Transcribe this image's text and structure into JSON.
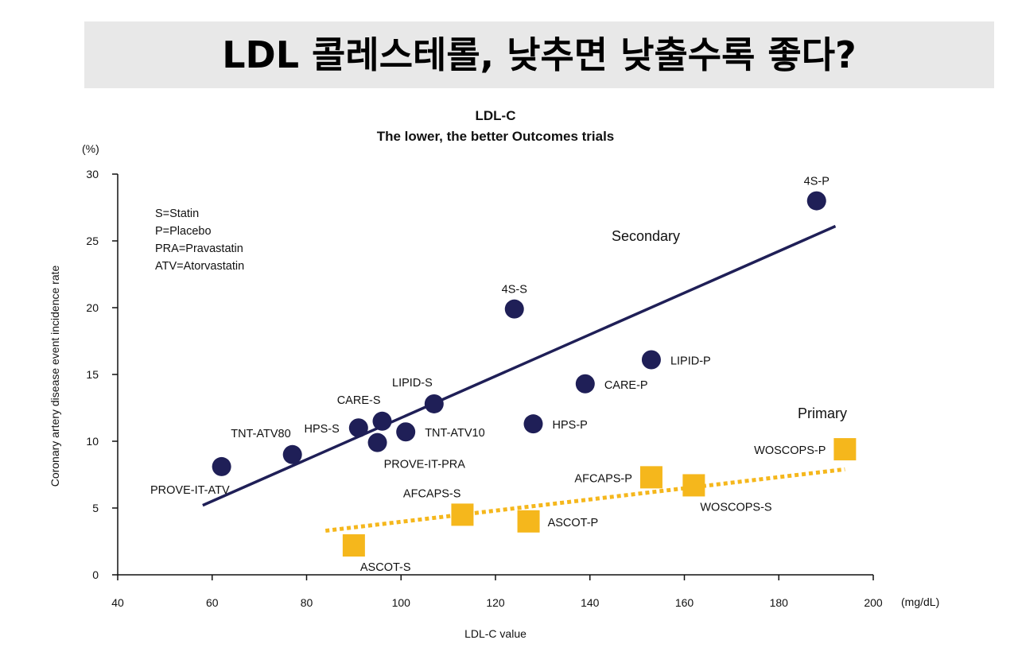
{
  "header": {
    "title": "LDL 콜레스테롤, 낮추면 낮출수록 좋다?"
  },
  "chart_data": {
    "type": "scatter",
    "title": "LDL-C",
    "subtitle": "The lower, the better Outcomes trials",
    "xlabel": "LDL-C value",
    "xunit": "(mg/dL)",
    "ylabel": "Coronary artery disease event incidence rate",
    "yunit": "(%)",
    "xlim": [
      40,
      200
    ],
    "ylim": [
      0,
      30
    ],
    "xticks": [
      40,
      60,
      80,
      100,
      120,
      140,
      160,
      180,
      200
    ],
    "yticks": [
      0,
      5,
      10,
      15,
      20,
      25,
      30
    ],
    "legend": [
      "S=Statin",
      "P=Placebo",
      "PRA=Pravastatin",
      "ATV=Atorvastatin"
    ],
    "colors": {
      "secondary": "#1f1f57",
      "primary": "#f5b71c"
    },
    "series": [
      {
        "name": "Secondary",
        "marker": "circle",
        "trendline": [
          [
            58,
            5.2
          ],
          [
            192,
            26.1
          ]
        ],
        "points": [
          {
            "label": "PROVE-IT-ATV",
            "x": 62,
            "y": 8.1,
            "pos": "below-left"
          },
          {
            "label": "TNT-ATV80",
            "x": 77,
            "y": 9.0,
            "pos": "above-left"
          },
          {
            "label": "HPS-S",
            "x": 91,
            "y": 11.0,
            "pos": "left"
          },
          {
            "label": "CARE-S",
            "x": 96,
            "y": 11.5,
            "pos": "above-left"
          },
          {
            "label": "PROVE-IT-PRA",
            "x": 95,
            "y": 9.9,
            "pos": "below-right"
          },
          {
            "label": "TNT-ATV10",
            "x": 101,
            "y": 10.7,
            "pos": "right"
          },
          {
            "label": "LIPID-S",
            "x": 107,
            "y": 12.8,
            "pos": "above-left"
          },
          {
            "label": "4S-S",
            "x": 124,
            "y": 19.9,
            "pos": "above"
          },
          {
            "label": "HPS-P",
            "x": 128,
            "y": 11.3,
            "pos": "right"
          },
          {
            "label": "CARE-P",
            "x": 139,
            "y": 14.3,
            "pos": "right"
          },
          {
            "label": "LIPID-P",
            "x": 153,
            "y": 16.1,
            "pos": "right"
          },
          {
            "label": "4S-P",
            "x": 188,
            "y": 28.0,
            "pos": "above"
          }
        ]
      },
      {
        "name": "Primary",
        "marker": "square",
        "trendline": [
          [
            84,
            3.3
          ],
          [
            194,
            7.9
          ]
        ],
        "points": [
          {
            "label": "ASCOT-S",
            "x": 90,
            "y": 2.2,
            "pos": "below-right"
          },
          {
            "label": "AFCAPS-S",
            "x": 113,
            "y": 4.5,
            "pos": "above-left"
          },
          {
            "label": "ASCOT-P",
            "x": 127,
            "y": 4.0,
            "pos": "right"
          },
          {
            "label": "AFCAPS-P",
            "x": 153,
            "y": 7.3,
            "pos": "left"
          },
          {
            "label": "WOSCOPS-S",
            "x": 162,
            "y": 6.7,
            "pos": "below-right"
          },
          {
            "label": "WOSCOPS-P",
            "x": 194,
            "y": 9.4,
            "pos": "left"
          }
        ]
      }
    ]
  }
}
